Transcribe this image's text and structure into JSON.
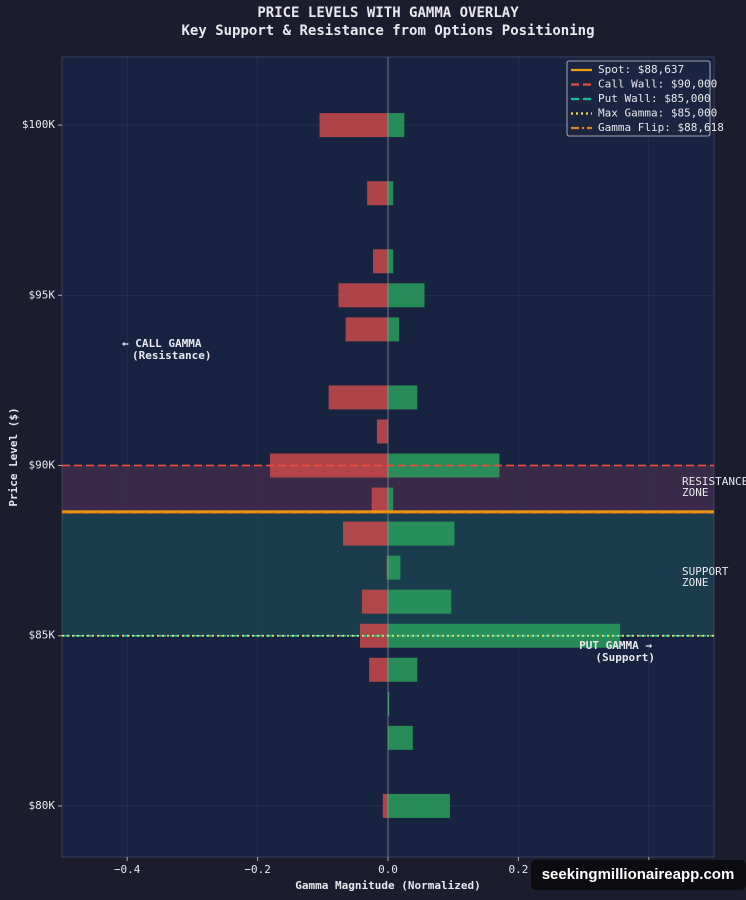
{
  "chart_data": {
    "type": "bar",
    "orientation": "horizontal",
    "title": "PRICE LEVELS WITH GAMMA OVERLAY",
    "subtitle": "Key Support & Resistance from Options Positioning",
    "x_label": "Gamma Magnitude (Normalized)",
    "y_label": "Price Level ($)",
    "y": [
      100000,
      98000,
      96000,
      95000,
      94000,
      92000,
      91000,
      90000,
      89000,
      88000,
      87000,
      86000,
      85000,
      84000,
      83000,
      82000,
      80000
    ],
    "series": [
      {
        "color": "#c94a4a",
        "values": [
          -0.105,
          -0.032,
          -0.023,
          -0.076,
          -0.065,
          -0.091,
          -0.017,
          -0.181,
          -0.025,
          -0.069,
          -0.002,
          -0.04,
          -0.043,
          -0.029,
          0,
          0,
          -0.008
        ]
      },
      {
        "color": "#2a9d5c",
        "values": [
          0.025,
          0.008,
          0.008,
          0.056,
          0.017,
          0.045,
          0,
          0.171,
          0.008,
          0.102,
          0.019,
          0.097,
          0.356,
          0.045,
          0.002,
          0.038,
          0.095
        ]
      }
    ],
    "xlim": [
      -0.5,
      0.5
    ],
    "xticks": [
      {
        "value": -0.4,
        "label": "−0.4"
      },
      {
        "value": -0.2,
        "label": "−0.2"
      },
      {
        "value": 0,
        "label": "0.0"
      },
      0.2,
      0.4
    ],
    "ylim": [
      78500,
      102000
    ],
    "yticks": [
      {
        "value": 80000,
        "label": "$80K"
      },
      {
        "value": 85000,
        "label": "$85K"
      },
      {
        "value": 90000,
        "label": "$90K"
      },
      {
        "value": 95000,
        "label": "$95K"
      },
      {
        "value": 100000,
        "label": "$100K"
      }
    ],
    "grid": true,
    "legend": "upper right",
    "lines": [
      {
        "name": "Spot: $88,637",
        "value": 88637,
        "color": "#f39c12",
        "style": "solid"
      },
      {
        "name": "Call Wall: $90,000",
        "value": 90000,
        "color": "#e74c3c",
        "style": "dashed"
      },
      {
        "name": "Put Wall: $85,000",
        "value": 85000,
        "color": "#1abc9c",
        "style": "dashed"
      },
      {
        "name": "Max Gamma: $85,000",
        "value": 85000,
        "color": "#f1e05a",
        "style": "dotted"
      },
      {
        "name": "Gamma Flip: $88,618",
        "value": 88618,
        "color": "#e67e22",
        "style": "dashdot"
      }
    ],
    "zones": [
      {
        "label": [
          "RESISTANCE",
          "ZONE"
        ],
        "from": 88637,
        "to": 90000,
        "color": "#7a3a5a"
      },
      {
        "label": [
          "SUPPORT",
          "ZONE"
        ],
        "from": 85000,
        "to": 88637,
        "color": "#1f6e60"
      }
    ],
    "annotations": [
      {
        "text": [
          "← CALL GAMMA",
          "(Resistance)"
        ],
        "color": "#e74c3c"
      },
      {
        "text": [
          "PUT GAMMA →",
          "(Support)"
        ],
        "color": "#27ae60"
      }
    ],
    "watermark": "seekingmillionaireapp.com"
  }
}
